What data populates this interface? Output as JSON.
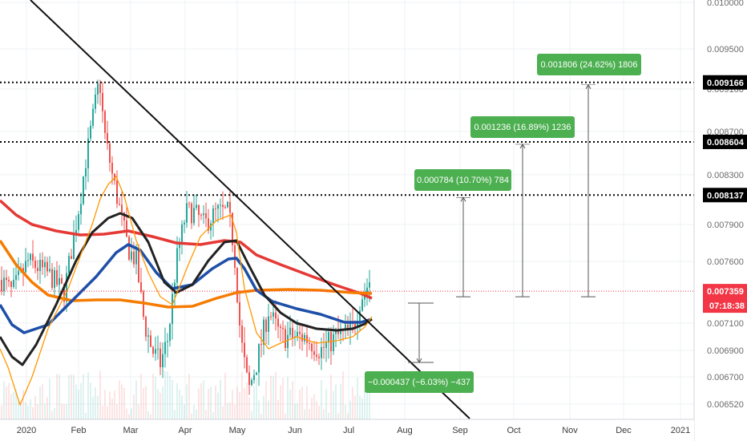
{
  "chart_data": {
    "type": "candlestick",
    "colors": {
      "up": "#26a69a",
      "down": "#ef5350",
      "ma_red": "#e53935",
      "ma_orange": "#f57c00",
      "ma_blue": "#1e4fa8",
      "ma_black": "#222222",
      "ma_thin_orange": "#ff9800",
      "measure_box": "#4caf50",
      "price_label": "#f23645"
    },
    "y_axis": {
      "min": 0.0064,
      "max": 0.0101,
      "ticks": [
        "0.010000",
        "0.009500",
        "0.009100",
        "0.008700",
        "0.008300",
        "0.007900",
        "0.007600",
        "0.007100",
        "0.006900",
        "0.006700",
        "0.006520"
      ]
    },
    "x_axis": {
      "ticks": [
        "2020",
        "Feb",
        "Mar",
        "Apr",
        "May",
        "Jun",
        "Jul",
        "Aug",
        "Sep",
        "Oct",
        "Nov",
        "Dec",
        "2021"
      ]
    },
    "levels": [
      {
        "value": 0.009166,
        "label": "0.009166"
      },
      {
        "value": 0.008604,
        "label": "0.008604"
      },
      {
        "value": 0.008137,
        "label": "0.008137"
      }
    ],
    "current_price": {
      "value": 0.007359,
      "label": "0.007359",
      "countdown": "07:18:38"
    },
    "measurements": [
      {
        "text": "0.000784 (10.70%) 784",
        "direction": "up"
      },
      {
        "text": "0.001236 (16.89%) 1236",
        "direction": "up"
      },
      {
        "text": "0.001806 (24.62%) 1806",
        "direction": "up"
      },
      {
        "text": "−0.000437 (−6.03%) −437",
        "direction": "down"
      }
    ],
    "grid": true
  }
}
